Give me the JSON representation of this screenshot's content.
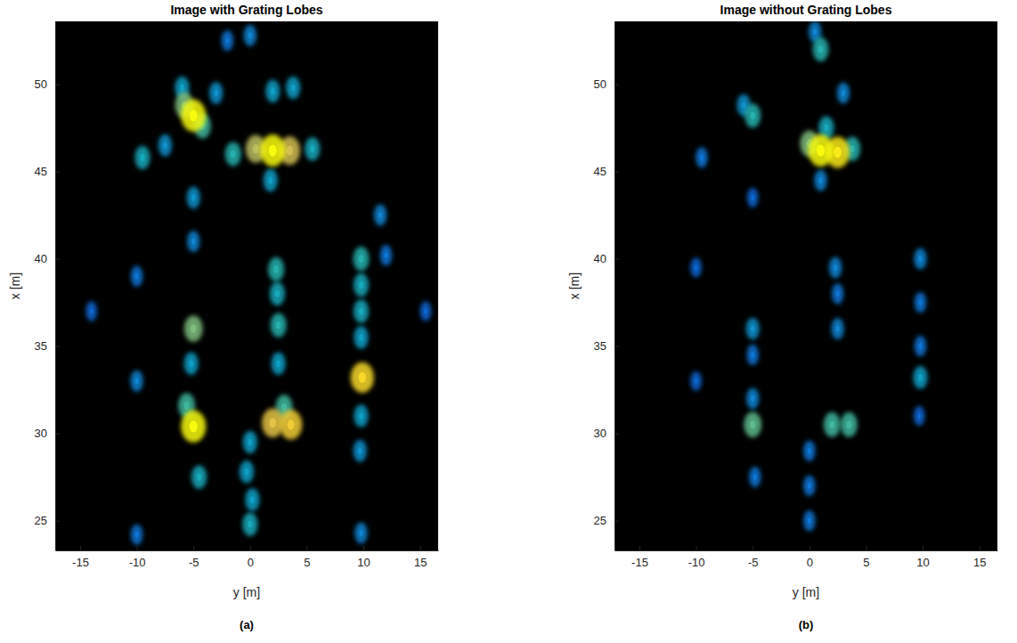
{
  "chart_data": [
    {
      "type": "scatter",
      "title": "Image with Grating Lobes",
      "caption": "(a)",
      "xlabel": "y [m]",
      "ylabel": "x [m]",
      "xlim": [
        -17.2,
        16.6
      ],
      "ylim": [
        23.3,
        53.6
      ],
      "xticks": [
        -15,
        -10,
        -5,
        0,
        5,
        10,
        15
      ],
      "yticks": [
        25,
        30,
        35,
        40,
        45,
        50
      ],
      "intensity_range": [
        0,
        1
      ],
      "x": [
        -5.0,
        -5.8,
        -4.2,
        -6.0,
        -3.0,
        -9.5,
        -7.5,
        2.0,
        0.5,
        3.5,
        -1.5,
        5.5,
        1.8,
        2.0,
        3.8,
        0.0,
        -2.0,
        -5.0,
        -5.0,
        11.5,
        2.3,
        2.4,
        2.5,
        2.5,
        2.0,
        3.6,
        3.0,
        -5.0,
        -5.2,
        -5.0,
        -5.6,
        -4.5,
        9.8,
        9.8,
        9.8,
        9.8,
        9.9,
        9.8,
        9.7,
        9.8,
        0.0,
        -0.3,
        0.2,
        0.0,
        -10.0,
        -10.0,
        -10.0,
        -14.0,
        15.5,
        12.0
      ],
      "y": [
        48.2,
        48.8,
        47.6,
        49.8,
        49.5,
        45.8,
        46.5,
        46.2,
        46.3,
        46.2,
        46.0,
        46.3,
        44.5,
        49.6,
        49.8,
        52.8,
        52.5,
        43.5,
        41.0,
        42.5,
        39.4,
        38.0,
        36.2,
        34.0,
        30.6,
        30.5,
        31.5,
        36.0,
        34.0,
        30.4,
        31.6,
        27.5,
        40.0,
        38.5,
        37.0,
        35.5,
        33.2,
        31.0,
        29.0,
        24.3,
        29.5,
        27.8,
        26.2,
        24.8,
        39.0,
        33.0,
        24.2,
        37.0,
        37.0,
        40.2
      ],
      "intensity": [
        1.0,
        0.6,
        0.5,
        0.35,
        0.3,
        0.4,
        0.3,
        1.0,
        0.7,
        0.75,
        0.45,
        0.4,
        0.35,
        0.35,
        0.35,
        0.25,
        0.2,
        0.3,
        0.25,
        0.25,
        0.45,
        0.4,
        0.45,
        0.35,
        0.8,
        0.85,
        0.5,
        0.6,
        0.35,
        1.0,
        0.5,
        0.4,
        0.45,
        0.4,
        0.4,
        0.35,
        0.9,
        0.35,
        0.3,
        0.25,
        0.35,
        0.35,
        0.35,
        0.4,
        0.2,
        0.25,
        0.2,
        0.15,
        0.15,
        0.2
      ]
    },
    {
      "type": "scatter",
      "title": "Image without Grating Lobes",
      "caption": "(b)",
      "xlabel": "y [m]",
      "ylabel": "x [m]",
      "xlim": [
        -17.2,
        16.6
      ],
      "ylim": [
        23.3,
        53.6
      ],
      "xticks": [
        -15,
        -10,
        -5,
        0,
        5,
        10,
        15
      ],
      "yticks": [
        25,
        30,
        35,
        40,
        45,
        50
      ],
      "intensity_range": [
        0,
        1
      ],
      "x": [
        -5.0,
        -5.8,
        -9.5,
        1.0,
        2.5,
        0.0,
        3.8,
        1.5,
        1.0,
        1.0,
        0.5,
        3.0,
        -5.0,
        2.3,
        2.5,
        2.5,
        2.0,
        3.5,
        -5.0,
        -5.0,
        -5.0,
        -5.0,
        -4.8,
        9.8,
        9.8,
        9.8,
        9.8,
        9.7,
        0.0,
        0.0,
        0.0,
        -10.0,
        -10.0
      ],
      "y": [
        48.2,
        48.8,
        45.8,
        46.2,
        46.1,
        46.6,
        46.3,
        47.5,
        44.5,
        52.0,
        53.0,
        49.5,
        43.5,
        39.5,
        38.0,
        36.0,
        30.5,
        30.5,
        36.0,
        34.5,
        30.5,
        32.0,
        27.5,
        40.0,
        37.5,
        35.0,
        33.2,
        31.0,
        29.0,
        27.0,
        25.0,
        39.5,
        33.0
      ],
      "intensity": [
        0.45,
        0.3,
        0.2,
        1.0,
        0.95,
        0.6,
        0.45,
        0.4,
        0.25,
        0.45,
        0.25,
        0.25,
        0.15,
        0.25,
        0.2,
        0.25,
        0.5,
        0.5,
        0.3,
        0.2,
        0.55,
        0.25,
        0.2,
        0.25,
        0.2,
        0.2,
        0.35,
        0.15,
        0.2,
        0.2,
        0.2,
        0.15,
        0.15
      ]
    }
  ]
}
